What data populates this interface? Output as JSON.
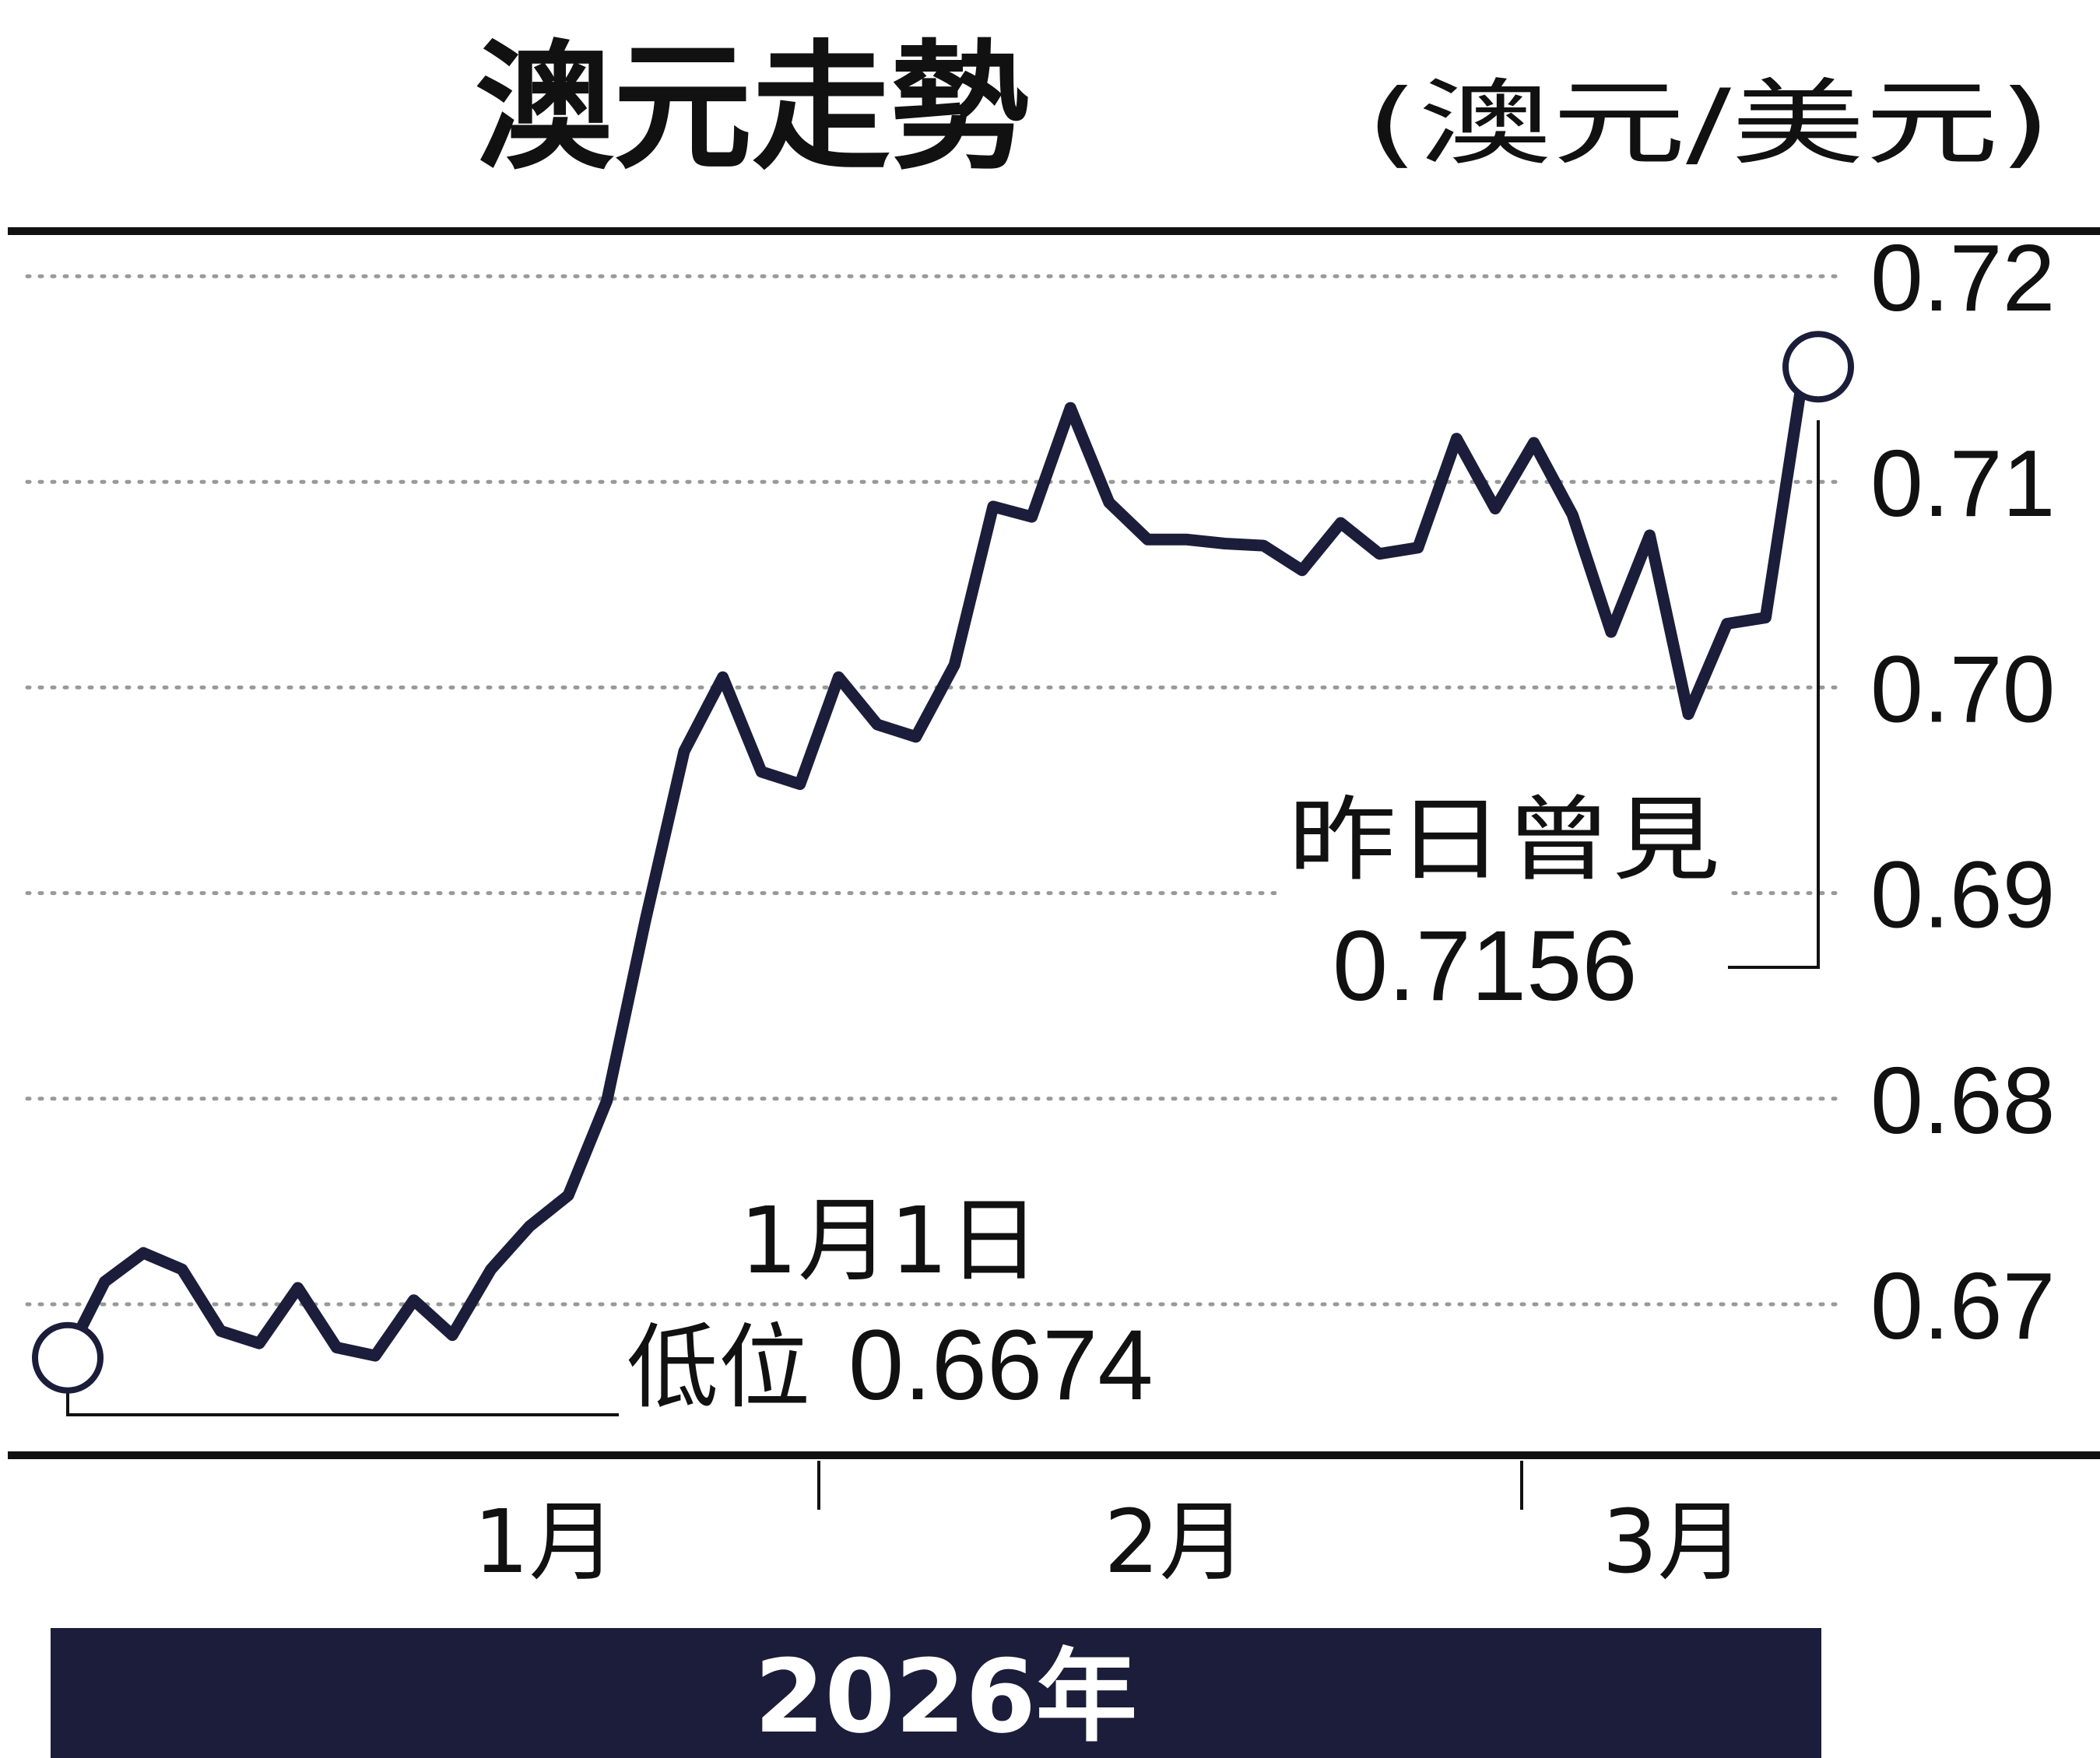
{
  "title": "澳元走勢",
  "unit": "(澳元/美元)",
  "year_label": "2026年",
  "colors": {
    "line": "#1b1d3a",
    "banner": "#1b1d3a",
    "text": "#111111",
    "grid": "#999999"
  },
  "chart_data": {
    "type": "line",
    "title": "澳元走勢",
    "ylabel": "(澳元/美元)",
    "xlabel": "2026年",
    "ylim": [
      0.6625,
      0.7225
    ],
    "yticks": [
      "0.72",
      "0.71",
      "0.70",
      "0.69",
      "0.68",
      "0.67"
    ],
    "x_tick_labels": [
      "1月",
      "2月",
      "3月"
    ],
    "grid": "horizontal dotted",
    "series": [
      {
        "values": [
          0.6674,
          0.6711,
          0.6725,
          0.6717,
          0.6687,
          0.6681,
          0.6708,
          0.6679,
          0.6675,
          0.6702,
          0.6685,
          0.6717,
          0.6738,
          0.6753,
          0.6799,
          0.6887,
          0.6969,
          0.7005,
          0.6959,
          0.6953,
          0.7005,
          0.6982,
          0.6976,
          0.7011,
          0.7088,
          0.7083,
          0.7136,
          0.709,
          0.7072,
          0.7072,
          0.707,
          0.7069,
          0.7057,
          0.708,
          0.7065,
          0.7068,
          0.7121,
          0.7087,
          0.7119,
          0.7084,
          0.7027,
          0.7074,
          0.6987,
          0.7031,
          0.7034,
          0.7156
        ]
      }
    ],
    "annotations": [
      {
        "point": "start",
        "date": "1月1日",
        "label": "低位",
        "value": "0.6674"
      },
      {
        "point": "end",
        "label": "昨日曾見",
        "value": "0.7156"
      }
    ]
  },
  "annotations": {
    "low_date": "1月1日",
    "low_label": "低位",
    "low_value": "0.6674",
    "high_label": "昨日曾見",
    "high_value": "0.7156"
  }
}
